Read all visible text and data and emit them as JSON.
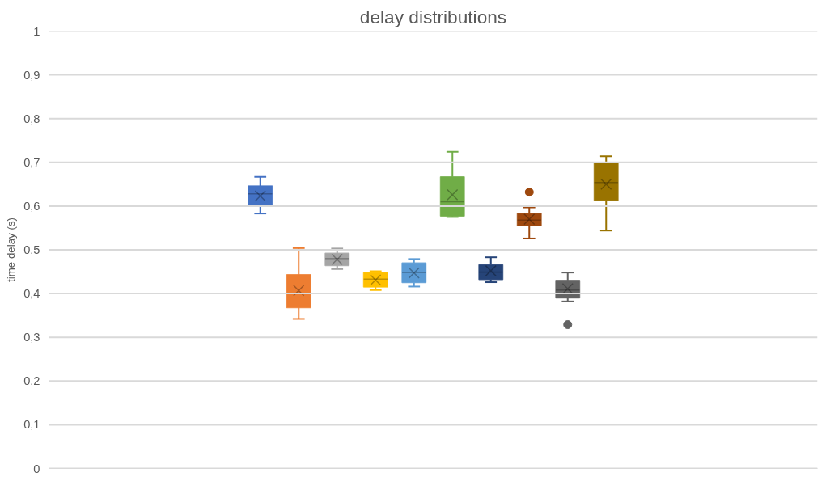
{
  "chart_data": {
    "type": "box",
    "title": "delay distributions",
    "ylabel": "time delay (s)",
    "categories": [
      null
    ],
    "ylim": [
      0,
      1
    ],
    "yticks": [
      0,
      {
        "value": 0.1,
        "label": "0,1"
      },
      {
        "value": 0.2,
        "label": "0,2"
      },
      {
        "value": 0.3,
        "label": "0,3"
      },
      {
        "value": 0.4,
        "label": "0,4"
      },
      {
        "value": 0.5,
        "label": "0,5"
      },
      {
        "value": 0.6,
        "label": "0,6"
      },
      {
        "value": 0.7,
        "label": "0,7"
      },
      {
        "value": 0.8,
        "label": "0,8"
      },
      {
        "value": 0.9,
        "label": "0,9"
      },
      1
    ],
    "grid": "y",
    "tick_labels": "y",
    "series": [
      {
        "color": "#4472c4",
        "boxes": [
          {
            "low": 0.583,
            "q1": 0.6,
            "median": 0.628,
            "q3": 0.646,
            "high": 0.667,
            "mean": 0.623
          }
        ]
      },
      {
        "color": "#ed7d31",
        "boxes": [
          {
            "low": 0.342,
            "q1": 0.368,
            "median": 0.4,
            "q3": 0.443,
            "high": 0.504,
            "mean": 0.407
          }
        ]
      },
      {
        "color": "#a5a5a5",
        "boxes": [
          {
            "low": 0.456,
            "q1": 0.464,
            "median": 0.48,
            "q3": 0.492,
            "high": 0.503,
            "mean": 0.478
          }
        ]
      },
      {
        "color": "#ffc000",
        "boxes": [
          {
            "low": 0.408,
            "q1": 0.415,
            "median": 0.433,
            "q3": 0.448,
            "high": 0.451,
            "mean": 0.431
          }
        ]
      },
      {
        "color": "#5b9bd5",
        "boxes": [
          {
            "low": 0.416,
            "q1": 0.425,
            "median": 0.448,
            "q3": 0.47,
            "high": 0.479,
            "mean": 0.447
          }
        ]
      },
      {
        "color": "#70ad47",
        "boxes": [
          {
            "low": 0.575,
            "q1": 0.577,
            "median": 0.61,
            "q3": 0.667,
            "high": 0.724,
            "mean": 0.626
          }
        ]
      },
      {
        "color": "#264478",
        "boxes": [
          {
            "low": 0.426,
            "q1": 0.432,
            "median": 0.449,
            "q3": 0.466,
            "high": 0.483,
            "mean": 0.452
          }
        ]
      },
      {
        "color": "#9e480e",
        "boxes": [
          {
            "low": 0.526,
            "q1": 0.555,
            "median": 0.568,
            "q3": 0.583,
            "high": 0.597,
            "mean": 0.57,
            "outliers": [
              0.632
            ]
          }
        ]
      },
      {
        "color": "#636363",
        "boxes": [
          {
            "low": 0.382,
            "q1": 0.39,
            "median": 0.408,
            "q3": 0.43,
            "high": 0.448,
            "mean": 0.411,
            "outliers": [
              0.329
            ]
          }
        ]
      },
      {
        "color": "#997300",
        "boxes": [
          {
            "low": 0.544,
            "q1": 0.613,
            "median": 0.654,
            "q3": 0.698,
            "high": 0.714,
            "mean": 0.65
          }
        ]
      }
    ]
  }
}
